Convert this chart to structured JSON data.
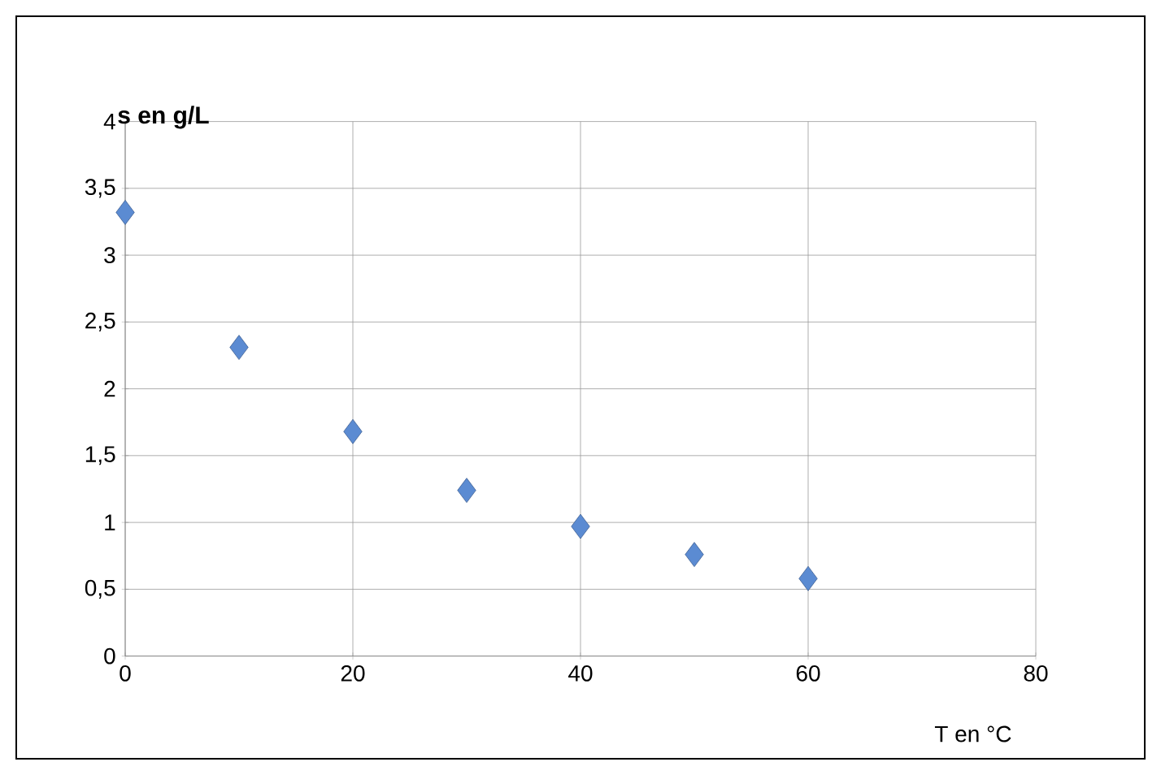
{
  "chart_data": {
    "type": "scatter",
    "xlabel": "T en °C",
    "ylabel": "s en g/L",
    "x": [
      0,
      10,
      20,
      30,
      40,
      50,
      60
    ],
    "values": [
      3.32,
      2.31,
      1.68,
      1.24,
      0.97,
      0.76,
      0.58
    ],
    "color": "#5b8bd2",
    "marker": "diamond",
    "grid": true,
    "xlim": [
      0,
      80
    ],
    "xticks": [
      0,
      20,
      40,
      60,
      80
    ],
    "ylim": [
      0,
      4
    ],
    "yticks": [
      0,
      {
        "value": 0.5,
        "label": "0,5"
      },
      1,
      {
        "value": 1.5,
        "label": "1,5"
      },
      2,
      {
        "value": 2.5,
        "label": "2,5"
      },
      3,
      {
        "value": 3.5,
        "label": "3,5"
      },
      4
    ]
  }
}
